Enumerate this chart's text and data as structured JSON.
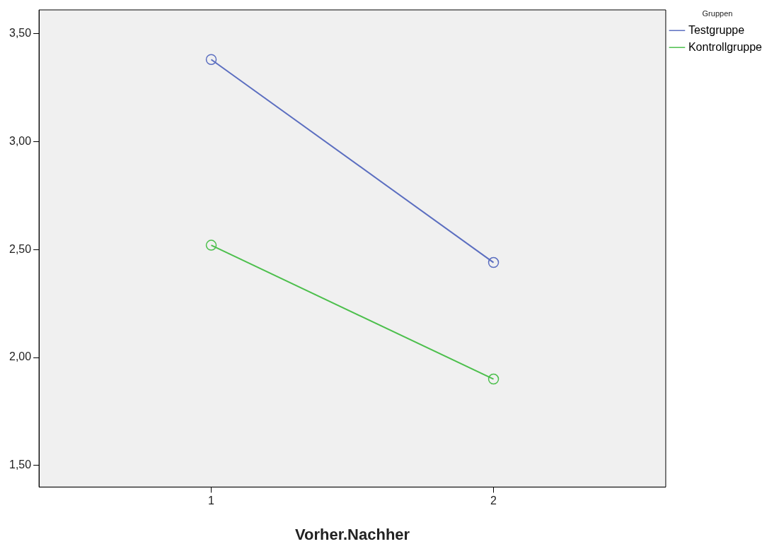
{
  "chart_data": {
    "type": "line",
    "xlabel": "Vorher.Nachher",
    "legend_title": "Gruppen",
    "x": [
      1,
      2
    ],
    "series": [
      {
        "name": "Testgruppe",
        "color": "#5b6ec0",
        "values": [
          3.38,
          2.44
        ]
      },
      {
        "name": "Kontrollgruppe",
        "color": "#4cbf4c",
        "values": [
          2.52,
          1.9
        ]
      }
    ],
    "xlim": [
      0.39,
      2.61
    ],
    "xticks": [
      1,
      2
    ],
    "ylim": [
      1.4,
      3.61
    ],
    "yticks": [
      {
        "value": 1.5,
        "label": "1,50"
      },
      {
        "value": 2,
        "label": "2,00"
      },
      {
        "value": 2.5,
        "label": "2,50"
      },
      {
        "value": 3,
        "label": "3,00"
      },
      {
        "value": 3.5,
        "label": "3,50"
      }
    ],
    "grid": false,
    "legend": "top right",
    "marker": "circle",
    "line_style": "solid"
  }
}
